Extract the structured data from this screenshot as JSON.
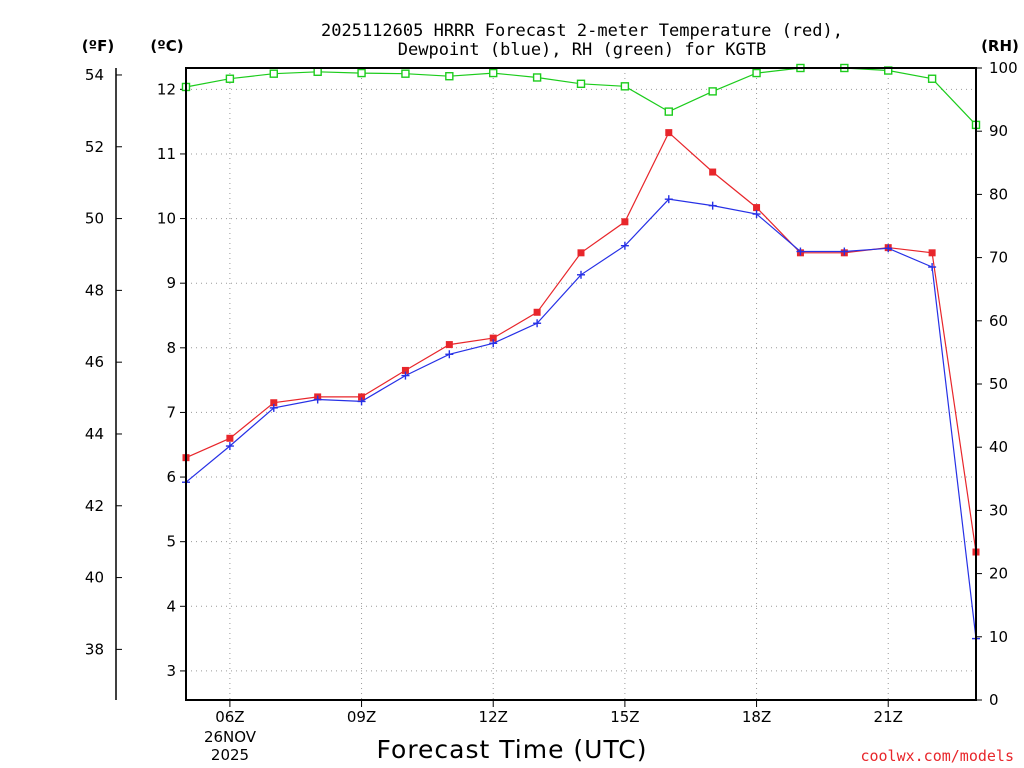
{
  "chart_data": {
    "type": "line",
    "title_line1": "2025112605 HRRR Forecast 2-meter Temperature (red),",
    "title_line2": "Dewpoint (blue), RH (green) for KGTB",
    "xlabel": "Forecast Time (UTC)",
    "date_label": [
      "26NOV",
      "2025"
    ],
    "credit": "coolwx.com/models",
    "units": {
      "fahrenheit": "(ºF)",
      "celsius": "(ºC)",
      "rh": "(RH)"
    },
    "x": [
      5,
      6,
      7,
      8,
      9,
      10,
      11,
      12,
      13,
      14,
      15,
      16,
      17,
      18,
      19,
      20,
      21,
      22,
      23
    ],
    "xlim": [
      5,
      23
    ],
    "x_ticks": [
      6,
      9,
      12,
      15,
      18,
      21
    ],
    "x_tick_labels": [
      "06Z",
      "09Z",
      "12Z",
      "15Z",
      "18Z",
      "21Z"
    ],
    "celsius_ticks": [
      "3",
      "4",
      "5",
      "6",
      "7",
      "8",
      "9",
      "10",
      "11",
      "12"
    ],
    "fahrenheit_ticks": [
      "38",
      "40",
      "42",
      "44",
      "46",
      "48",
      "50",
      "52",
      "54"
    ],
    "rh_ticks": [
      "0",
      "10",
      "20",
      "30",
      "40",
      "50",
      "60",
      "70",
      "80",
      "90",
      "100"
    ],
    "ylim_celsius": [
      2.55,
      12.33
    ],
    "ylim_rh": [
      0,
      100
    ],
    "series": [
      {
        "name": "Temperature",
        "color": "#e8262b",
        "axis": "celsius",
        "values": [
          6.3,
          6.6,
          7.15,
          7.24,
          7.24,
          7.65,
          8.05,
          8.15,
          8.55,
          9.47,
          9.95,
          11.33,
          10.72,
          10.17,
          9.47,
          9.47,
          9.55,
          9.47,
          4.84
        ]
      },
      {
        "name": "Dewpoint",
        "color": "#2630e6",
        "axis": "celsius",
        "values": [
          5.92,
          6.48,
          7.07,
          7.2,
          7.17,
          7.57,
          7.9,
          8.07,
          8.38,
          9.13,
          9.58,
          10.3,
          10.2,
          10.07,
          9.49,
          9.49,
          9.54,
          9.25,
          3.5
        ]
      },
      {
        "name": "RH",
        "color": "#1ccc1c",
        "axis": "rh",
        "values": [
          97,
          98.3,
          99.1,
          99.4,
          99.2,
          99.1,
          98.7,
          99.2,
          98.5,
          97.5,
          97.1,
          93.1,
          96.3,
          99.2,
          100,
          100,
          99.6,
          98.3,
          91
        ]
      }
    ]
  }
}
